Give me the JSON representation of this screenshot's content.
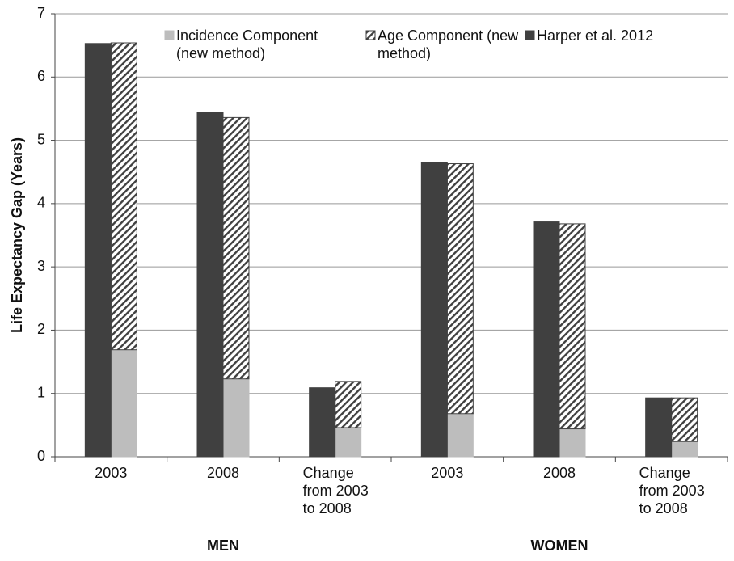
{
  "chart_data": {
    "type": "bar",
    "y_label": "Life Expectancy Gap (Years)",
    "categories": [
      "2003",
      "2008",
      "Change from 2003 to 2008",
      "2003",
      "2008",
      "Change from 2003 to 2008"
    ],
    "group_labels": [
      "MEN",
      "WOMEN"
    ],
    "series": [
      {
        "name": "Incidence Component (new method)",
        "color": "#bdbdbd",
        "stacked": true,
        "values": [
          1.69,
          1.23,
          0.46,
          0.68,
          0.44,
          0.24
        ]
      },
      {
        "name": "Age Component (new method)",
        "color": "#404040",
        "pattern": "hatch",
        "stacked": true,
        "values": [
          4.85,
          4.13,
          0.73,
          3.95,
          3.24,
          0.69
        ]
      },
      {
        "name": "Harper et al. 2012",
        "color": "#404040",
        "values": [
          6.53,
          5.44,
          1.09,
          4.65,
          3.71,
          0.93
        ]
      }
    ],
    "ylim": [
      0,
      7
    ],
    "yticks": [
      0,
      1,
      2,
      3,
      4,
      5,
      6,
      7
    ],
    "grid": true
  }
}
